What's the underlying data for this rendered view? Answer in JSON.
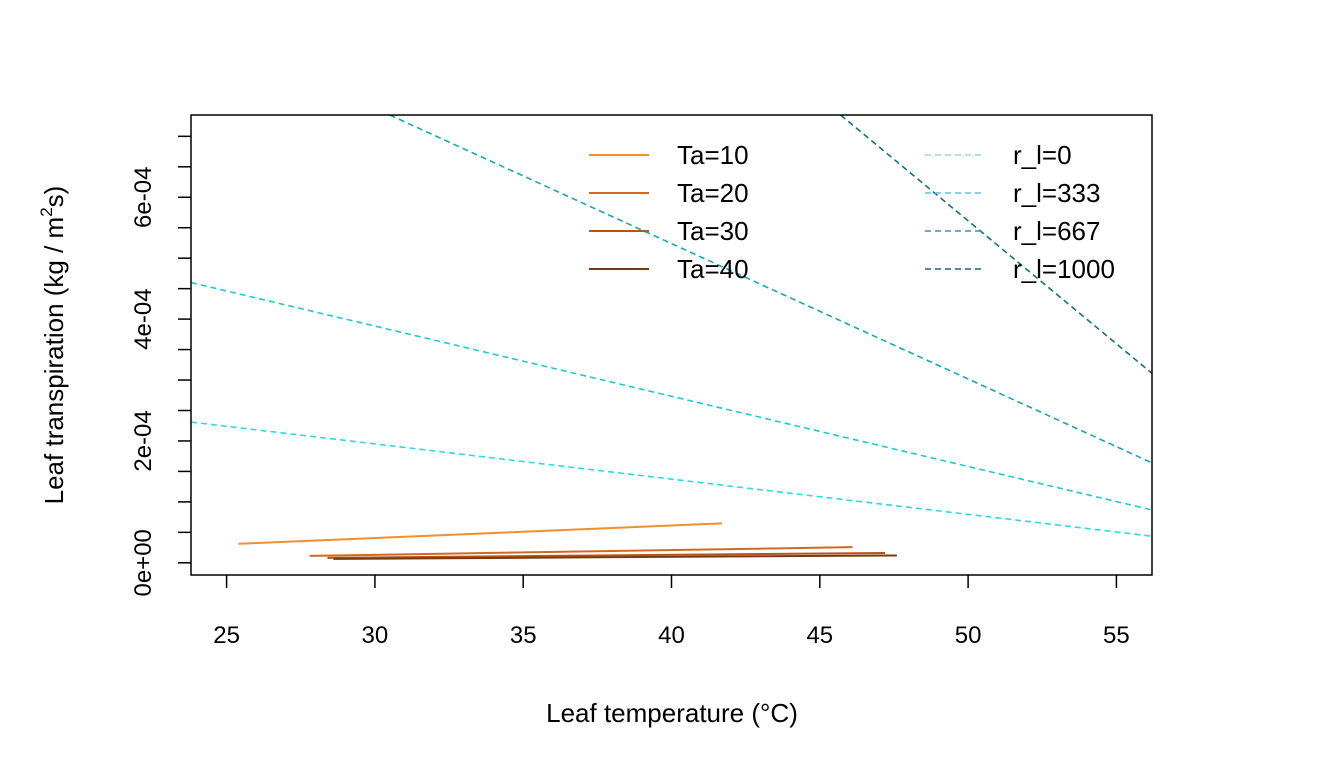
{
  "chart_data": {
    "type": "line",
    "title": "",
    "xlabel": "Leaf temperature (°C)",
    "ylabel_main": "Leaf transpiration (kg / m",
    "ylabel_sup": "2",
    "ylabel_tail": "s)",
    "xlim": [
      23.8,
      56.2
    ],
    "ylim": [
      -2e-05,
      0.000735
    ],
    "xticks": [
      25,
      30,
      35,
      40,
      45,
      50,
      55
    ],
    "xtick_labels": [
      "25",
      "30",
      "35",
      "40",
      "45",
      "50",
      "55"
    ],
    "yticks": [
      0,
      5e-05,
      0.0001,
      0.00015,
      0.0002,
      0.00025,
      0.0003,
      0.00035,
      0.0004,
      0.00045,
      0.0005,
      0.00055,
      0.0006,
      0.00065,
      0.0007
    ],
    "ytick_labels": [
      {
        "value": 0,
        "label": "0e+00"
      },
      {
        "value": 0.0002,
        "label": "2e-04"
      },
      {
        "value": 0.0004,
        "label": "4e-04"
      },
      {
        "value": 0.0006,
        "label": "6e-04"
      }
    ],
    "solid_series": [
      {
        "name": "Ta=10",
        "color": "#F28E2B",
        "x": [
          25.4,
          41.7
        ],
        "y": [
          3.12e-05,
          6.48e-05
        ]
      },
      {
        "name": "Ta=20",
        "color": "#D2691E",
        "x": [
          27.8,
          46.1
        ],
        "y": [
          1.14e-05,
          2.57e-05
        ]
      },
      {
        "name": "Ta=30",
        "color": "#B5541C",
        "x": [
          28.4,
          47.2
        ],
        "y": [
          8.1e-06,
          1.62e-05
        ]
      },
      {
        "name": "Ta=40",
        "color": "#7A3A0E",
        "x": [
          28.6,
          47.6
        ],
        "y": [
          6.4e-06,
          1.21e-05
        ]
      }
    ],
    "dashed_series": [
      {
        "name": "r_l=0",
        "color": "#2ED8E6",
        "x": [
          23.8,
          56.2
        ],
        "y": [
          0.000231,
          4.37e-05
        ]
      },
      {
        "name": "r_l=333",
        "color": "#22C8D6",
        "x": [
          23.8,
          56.2
        ],
        "y": [
          0.00046,
          8.67e-05
        ]
      },
      {
        "name": "r_l=667",
        "color": "#1AA6B5",
        "x": [
          30.5,
          56.2
        ],
        "y": [
          0.000735,
          0.000164
        ]
      },
      {
        "name": "r_l=1000",
        "color": "#166F7A",
        "x": [
          45.7,
          56.2
        ],
        "y": [
          0.000735,
          0.000311
        ]
      }
    ],
    "legend_solid": [
      {
        "label": "Ta=10",
        "color": "#F28E2B"
      },
      {
        "label": "Ta=20",
        "color": "#D2691E"
      },
      {
        "label": "Ta=30",
        "color": "#B5541C"
      },
      {
        "label": "Ta=40",
        "color": "#7A3A0E"
      }
    ],
    "legend_dashed": [
      {
        "label": "r_l=0",
        "color": "#8ED6EA"
      },
      {
        "label": "r_l=333",
        "color": "#67BDD8"
      },
      {
        "label": "r_l=667",
        "color": "#3A93AE"
      },
      {
        "label": "r_l=1000",
        "color": "#1E6577"
      }
    ],
    "legend_position": "top-right",
    "grid": false
  }
}
